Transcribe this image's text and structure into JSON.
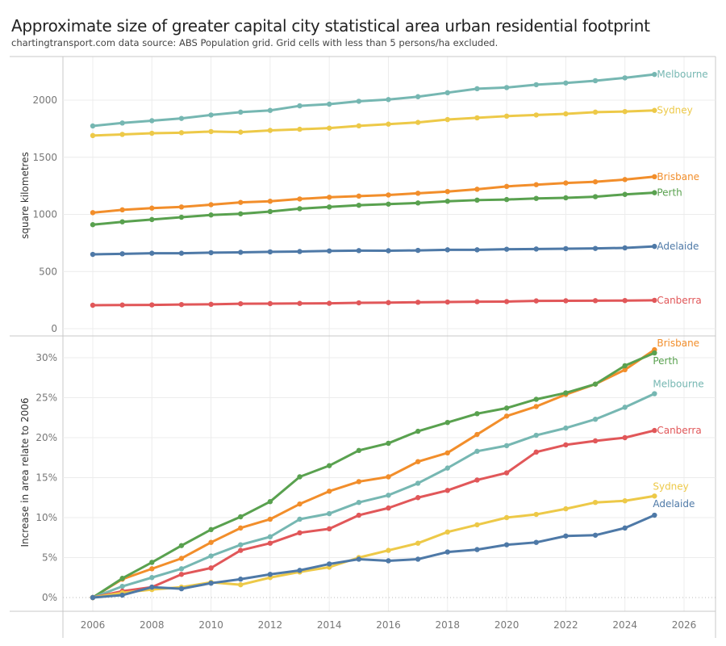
{
  "header": {
    "title": "Approximate size of greater capital city statistical area urban residential footprint",
    "subtitle": "chartingtransport.com  data source: ABS Population grid. Grid cells with less than 5 persons/ha excluded."
  },
  "colors": {
    "Melbourne": "#76b7b2",
    "Sydney": "#edc948",
    "Brisbane": "#f28e2b",
    "Perth": "#59a14f",
    "Adelaide": "#4e79a7",
    "Canberra": "#e15759"
  },
  "chart_data": [
    {
      "type": "line",
      "title": "Approximate size of greater capital city statistical area urban residential footprint",
      "xlabel": "",
      "ylabel": "square kilometres",
      "x": [
        2006,
        2007,
        2008,
        2009,
        2010,
        2011,
        2012,
        2013,
        2014,
        2015,
        2016,
        2017,
        2018,
        2019,
        2020,
        2021,
        2022,
        2023,
        2024,
        2025
      ],
      "xlim": [
        2005,
        2027
      ],
      "ylim": [
        -30,
        2300
      ],
      "yticks": [
        0,
        500,
        1000,
        1500,
        2000
      ],
      "ytick_labels": [
        "0",
        "500",
        "1000",
        "1500",
        "2000"
      ],
      "grid": true,
      "legend": "direct labels at line ends (right)",
      "series": [
        {
          "name": "Melbourne",
          "values": [
            1774,
            1800,
            1820,
            1840,
            1870,
            1895,
            1910,
            1950,
            1965,
            1990,
            2005,
            2030,
            2065,
            2100,
            2110,
            2135,
            2150,
            2170,
            2195,
            2225
          ]
        },
        {
          "name": "Sydney",
          "values": [
            1690,
            1700,
            1710,
            1715,
            1725,
            1720,
            1735,
            1745,
            1755,
            1775,
            1790,
            1805,
            1830,
            1845,
            1860,
            1870,
            1880,
            1895,
            1900,
            1910
          ]
        },
        {
          "name": "Brisbane",
          "values": [
            1015,
            1040,
            1055,
            1065,
            1085,
            1105,
            1115,
            1135,
            1150,
            1160,
            1170,
            1185,
            1200,
            1220,
            1245,
            1260,
            1275,
            1285,
            1305,
            1330
          ]
        },
        {
          "name": "Perth",
          "values": [
            910,
            935,
            955,
            975,
            995,
            1005,
            1025,
            1050,
            1065,
            1080,
            1090,
            1100,
            1115,
            1125,
            1130,
            1140,
            1145,
            1155,
            1175,
            1190
          ]
        },
        {
          "name": "Adelaide",
          "values": [
            650,
            655,
            660,
            660,
            665,
            668,
            672,
            675,
            680,
            683,
            682,
            685,
            690,
            690,
            695,
            697,
            700,
            702,
            707,
            720
          ]
        },
        {
          "name": "Canberra",
          "values": [
            205,
            207,
            208,
            211,
            213,
            218,
            219,
            221,
            222,
            226,
            228,
            231,
            233,
            236,
            237,
            243,
            244,
            245,
            246,
            248
          ]
        }
      ]
    },
    {
      "type": "line",
      "xlabel": "",
      "ylabel": "Increase in area relate to 2006",
      "x": [
        2006,
        2007,
        2008,
        2009,
        2010,
        2011,
        2012,
        2013,
        2014,
        2015,
        2016,
        2017,
        2018,
        2019,
        2020,
        2021,
        2022,
        2023,
        2024,
        2025
      ],
      "xlim": [
        2005,
        2027
      ],
      "xticks": [
        2006,
        2008,
        2010,
        2012,
        2014,
        2016,
        2018,
        2020,
        2022,
        2024,
        2026
      ],
      "xtick_labels": [
        "2006",
        "2008",
        "2010",
        "2012",
        "2014",
        "2016",
        "2018",
        "2020",
        "2022",
        "2024",
        "2026"
      ],
      "ylim": [
        -3,
        32.5
      ],
      "yticks": [
        0,
        5,
        10,
        15,
        20,
        25,
        30
      ],
      "ytick_labels": [
        "0%",
        "5%",
        "10%",
        "15%",
        "20%",
        "25%",
        "30%"
      ],
      "grid": true,
      "legend": "direct labels at line ends (right)",
      "series": [
        {
          "name": "Brisbane",
          "values": [
            0,
            2.3,
            3.6,
            4.9,
            6.9,
            8.7,
            9.8,
            11.7,
            13.3,
            14.5,
            15.1,
            17.0,
            18.1,
            20.4,
            22.7,
            23.9,
            25.4,
            26.7,
            28.5,
            31.0
          ]
        },
        {
          "name": "Perth",
          "values": [
            0,
            2.4,
            4.4,
            6.5,
            8.5,
            10.1,
            12.0,
            15.1,
            16.5,
            18.4,
            19.3,
            20.8,
            21.9,
            23.0,
            23.7,
            24.8,
            25.6,
            26.7,
            29.0,
            30.6
          ]
        },
        {
          "name": "Melbourne",
          "values": [
            0,
            1.4,
            2.5,
            3.6,
            5.2,
            6.6,
            7.6,
            9.8,
            10.5,
            11.9,
            12.8,
            14.3,
            16.2,
            18.3,
            19.0,
            20.3,
            21.2,
            22.3,
            23.8,
            25.5
          ]
        },
        {
          "name": "Canberra",
          "values": [
            0,
            0.8,
            1.3,
            2.9,
            3.7,
            5.9,
            6.8,
            8.1,
            8.6,
            10.3,
            11.2,
            12.5,
            13.4,
            14.7,
            15.6,
            18.2,
            19.1,
            19.6,
            20.0,
            20.9
          ]
        },
        {
          "name": "Sydney",
          "values": [
            0,
            0.6,
            1.0,
            1.3,
            1.9,
            1.6,
            2.5,
            3.2,
            3.8,
            5.0,
            5.9,
            6.8,
            8.2,
            9.1,
            10.0,
            10.4,
            11.1,
            11.9,
            12.1,
            12.7
          ]
        },
        {
          "name": "Adelaide",
          "values": [
            0,
            0.3,
            1.3,
            1.1,
            1.8,
            2.3,
            2.9,
            3.4,
            4.2,
            4.8,
            4.6,
            4.8,
            5.7,
            6.0,
            6.6,
            6.9,
            7.7,
            7.8,
            8.7,
            10.3
          ]
        }
      ]
    }
  ]
}
